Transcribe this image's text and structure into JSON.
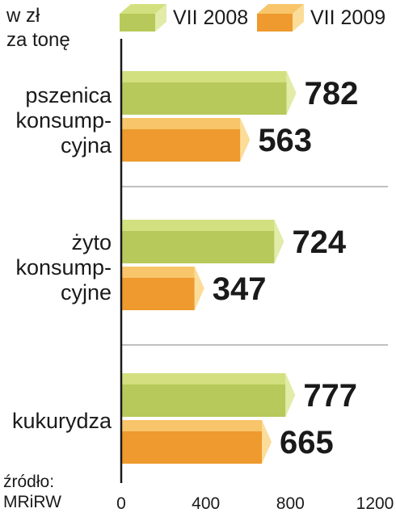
{
  "unit_line1": "w zł",
  "unit_line2": "za tonę",
  "source_line1": "źródło:",
  "source_line2": "MRiRW",
  "colors": {
    "green_front": "#b6c95a",
    "green_top": "#d3e07f",
    "green_side": "#e2eba8",
    "orange_front": "#ee9a2e",
    "orange_top": "#f8c56a",
    "orange_side": "#fbdd99"
  },
  "chart_data": {
    "type": "bar",
    "orientation": "horizontal",
    "unit": "w zł za tonę",
    "categories": [
      {
        "lines": [
          "pszenica",
          "konsump-",
          "cyjna"
        ]
      },
      {
        "lines": [
          "żyto",
          "konsump-",
          "cyjne"
        ]
      },
      {
        "lines": [
          "kukurydza"
        ]
      }
    ],
    "series": [
      {
        "name": "VII 2008",
        "color": "green",
        "values": [
          782,
          724,
          777
        ]
      },
      {
        "name": "VII 2009",
        "color": "orange",
        "values": [
          563,
          347,
          665
        ]
      }
    ],
    "xlim": [
      0,
      1200
    ],
    "xticks": [
      "0",
      "400",
      "800",
      "1200"
    ],
    "data_labels": true,
    "grid": false,
    "legend": "top"
  }
}
